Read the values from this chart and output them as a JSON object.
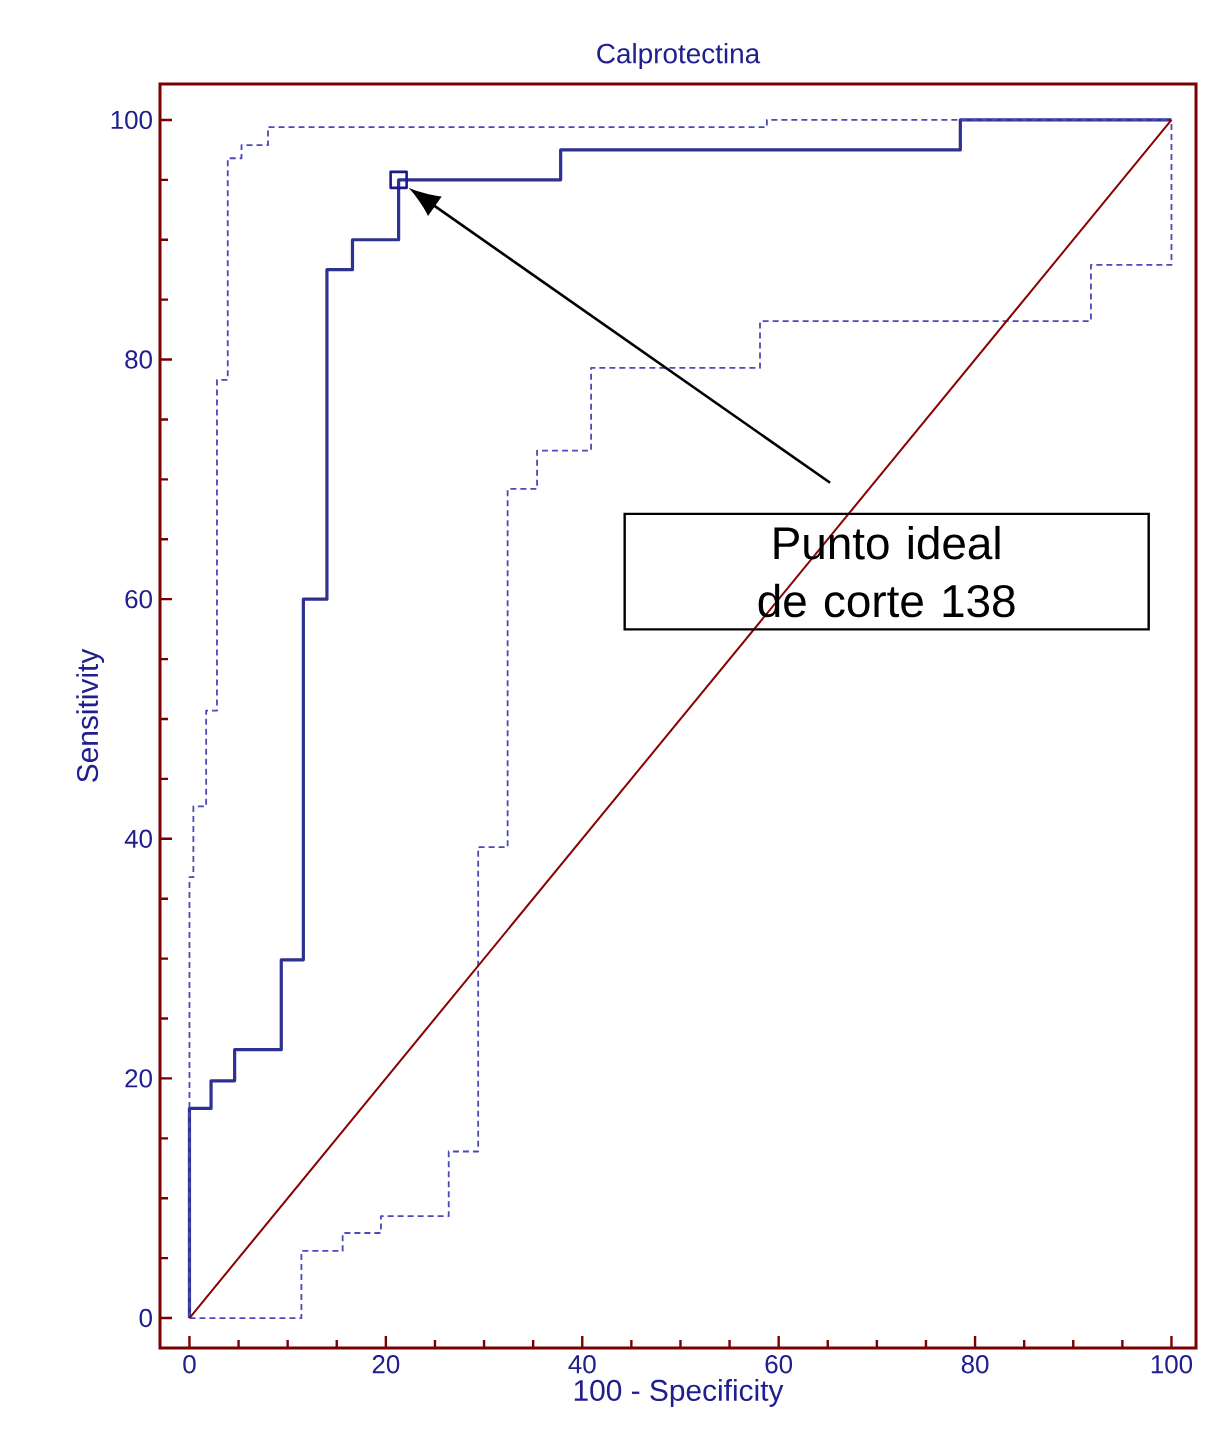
{
  "chart_data": {
    "type": "step",
    "title": "Calprotectina",
    "xlabel": "100 - Specificity",
    "ylabel": "Sensitivity",
    "xlim": [
      -3,
      102.5
    ],
    "ylim": [
      -2.5,
      103
    ],
    "xticks": [
      0,
      20,
      40,
      60,
      80,
      100
    ],
    "yticks": [
      0,
      20,
      40,
      60,
      80,
      100
    ],
    "grid": false,
    "annotations": [
      "Punto ideal de corte 138"
    ],
    "series": [
      {
        "x": [
          0,
          0,
          2.2,
          4.6,
          9.35,
          11.6,
          14,
          16.6,
          21.3,
          37.8,
          78.5,
          100
        ],
        "values": [
          0,
          17.5,
          19.8,
          22.4,
          29.9,
          60,
          87.5,
          90,
          95,
          97.5,
          100,
          100
        ],
        "color": "#2e3192",
        "line_style": "solid"
      },
      {
        "x": [
          0,
          0,
          0.4,
          1.7,
          2.8,
          3.9,
          5.3,
          8,
          58.8,
          100
        ],
        "values": [
          0,
          36.8,
          42.7,
          50.7,
          78.3,
          96.8,
          97.9,
          99.4,
          100,
          100
        ],
        "color": "#4a4aba",
        "line_style": "dashed"
      },
      {
        "x": [
          0,
          11.4,
          15.6,
          19.5,
          26.4,
          29.4,
          32.4,
          35.4,
          40.9,
          58.1,
          91.8,
          100
        ],
        "values": [
          0,
          5.6,
          7.1,
          8.5,
          13.9,
          39.3,
          69.2,
          72.4,
          79.3,
          83.2,
          87.9,
          100
        ],
        "color": "#4a4aba",
        "line_style": "dashed"
      },
      {
        "type": "line",
        "x": [
          0,
          100
        ],
        "values": [
          0,
          100
        ],
        "color": "#8b0000",
        "line_style": "solid"
      },
      {
        "type": "scatter",
        "x": [
          21.3
        ],
        "values": [
          95
        ],
        "color": "#1a1a8c",
        "marker": "square"
      }
    ]
  }
}
